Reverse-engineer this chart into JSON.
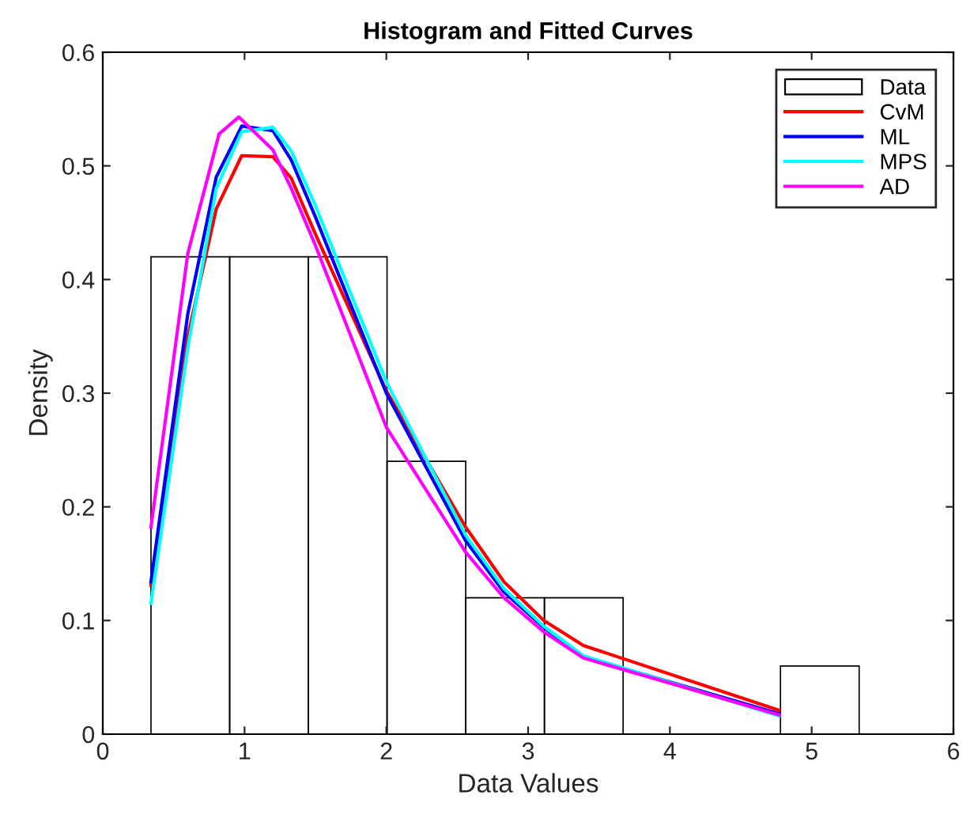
{
  "chart_data": {
    "type": "histogram",
    "title": "Histogram and Fitted Curves",
    "xlabel": "Data Values",
    "ylabel": "Density",
    "bins": [
      0.34,
      0.895,
      1.45,
      2.005,
      2.56,
      3.115,
      3.67,
      4.225,
      4.78,
      5.335,
      5.89
    ],
    "series": [
      {
        "name": "Data",
        "type": "histogram",
        "color": "#000000",
        "values": [
          0.42,
          0.42,
          0.42,
          0.24,
          0.12,
          0.12,
          0,
          0,
          0.06,
          0
        ]
      },
      {
        "name": "CvM",
        "type": "line",
        "color": "#ff0000",
        "x": [
          0.34,
          0.6,
          0.8,
          0.98,
          1.2,
          1.33,
          1.5,
          2.0,
          2.56,
          2.83,
          3.11,
          3.39,
          4.77
        ],
        "values": [
          0.131,
          0.35,
          0.462,
          0.509,
          0.508,
          0.489,
          0.44,
          0.302,
          0.182,
          0.134,
          0.1,
          0.078,
          0.021
        ]
      },
      {
        "name": "ML",
        "type": "line",
        "color": "#0000ff",
        "x": [
          0.34,
          0.6,
          0.8,
          0.98,
          1.2,
          1.33,
          1.5,
          2.0,
          2.56,
          2.83,
          3.11,
          3.39,
          4.77
        ],
        "values": [
          0.134,
          0.37,
          0.49,
          0.535,
          0.531,
          0.505,
          0.455,
          0.3,
          0.17,
          0.125,
          0.094,
          0.068,
          0.018
        ]
      },
      {
        "name": "MPS",
        "type": "line",
        "color": "#00ffff",
        "x": [
          0.34,
          0.6,
          0.8,
          0.98,
          1.2,
          1.33,
          1.5,
          2.0,
          2.56,
          2.83,
          3.11,
          3.39,
          4.77
        ],
        "values": [
          0.115,
          0.34,
          0.48,
          0.53,
          0.534,
          0.513,
          0.465,
          0.31,
          0.175,
          0.128,
          0.095,
          0.069,
          0.016
        ]
      },
      {
        "name": "AD",
        "type": "line",
        "color": "#ff00ff",
        "x": [
          0.34,
          0.6,
          0.82,
          0.96,
          1.2,
          1.33,
          1.5,
          2.0,
          2.56,
          2.83,
          3.11,
          3.39,
          4.77
        ],
        "values": [
          0.182,
          0.423,
          0.528,
          0.543,
          0.514,
          0.48,
          0.43,
          0.27,
          0.16,
          0.12,
          0.09,
          0.067,
          0.017
        ]
      }
    ],
    "xlim": [
      0,
      6
    ],
    "ylim": [
      0,
      0.6
    ],
    "xticks": [
      0,
      1,
      2,
      3,
      4,
      5,
      6
    ],
    "yticks": [
      0,
      0.1,
      0.2,
      0.3,
      0.4,
      0.5,
      0.6
    ],
    "grid": false,
    "legend": "top right"
  }
}
